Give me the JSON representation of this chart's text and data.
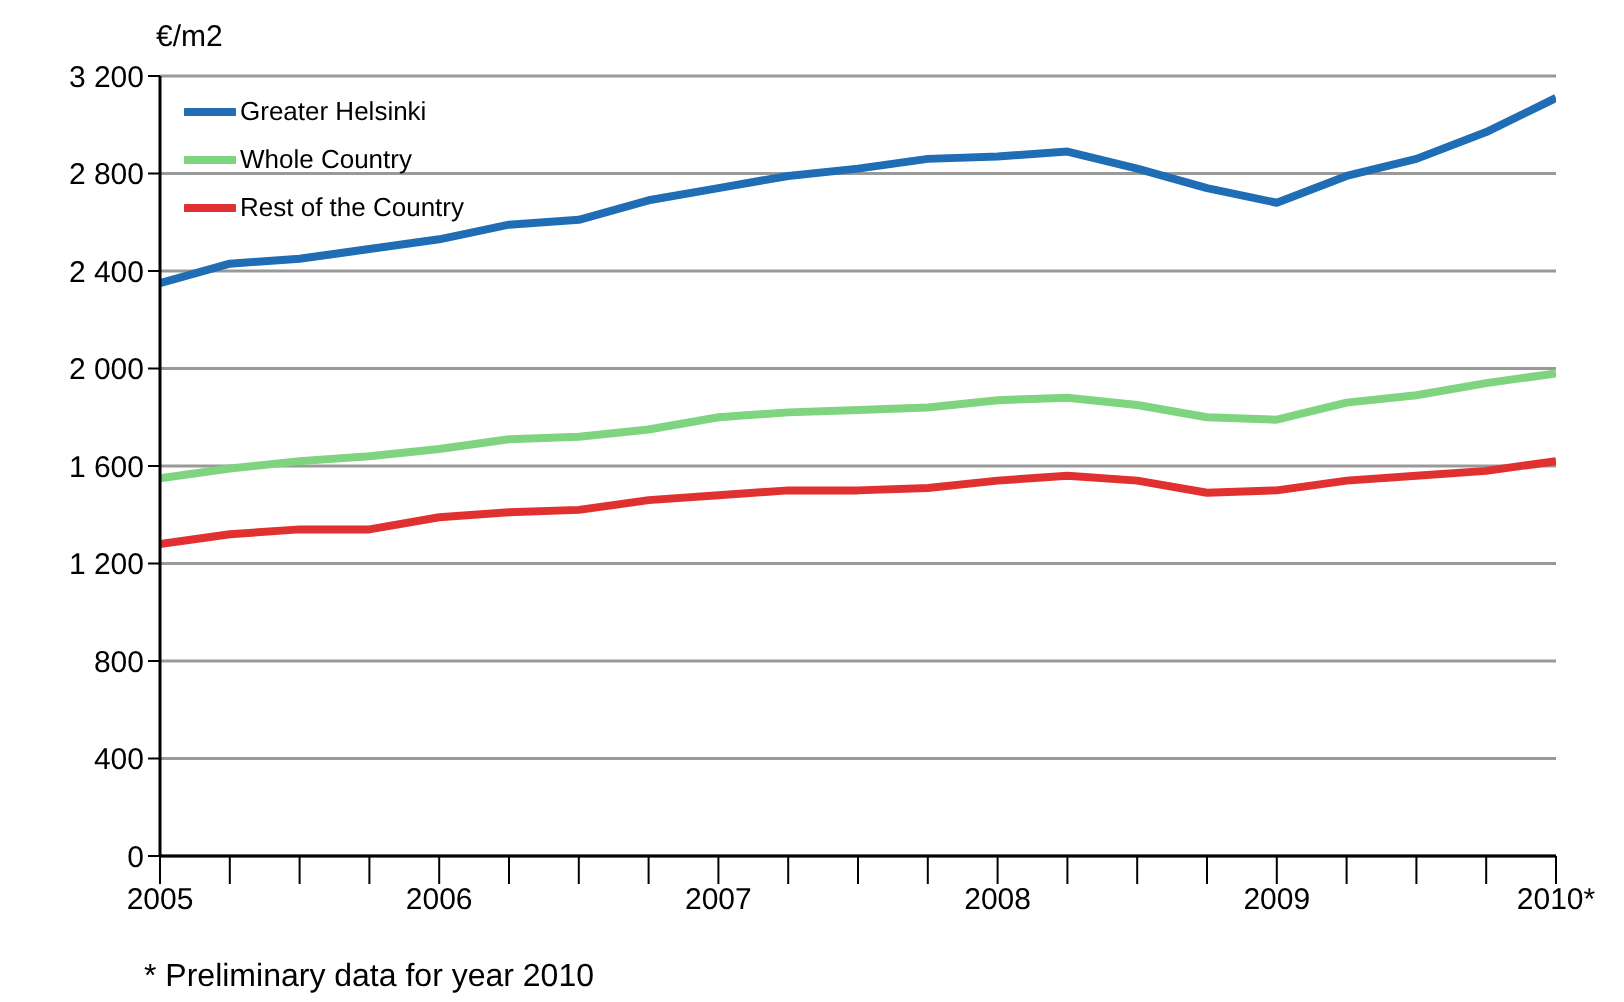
{
  "chart_data": {
    "type": "line",
    "ylabel": "€/m2",
    "annotations": [
      "* Preliminary data for year 2010"
    ],
    "x": [
      2005,
      2005.25,
      2005.5,
      2005.75,
      2006,
      2006.25,
      2006.5,
      2006.75,
      2007,
      2007.25,
      2007.5,
      2007.75,
      2008,
      2008.25,
      2008.5,
      2008.75,
      2009,
      2009.25,
      2009.5,
      2009.75,
      2010
    ],
    "series": [
      {
        "name": "Greater Helsinki",
        "color": "#1f6db5",
        "values": [
          2350,
          2430,
          2450,
          2490,
          2530,
          2590,
          2610,
          2690,
          2740,
          2790,
          2820,
          2860,
          2870,
          2890,
          2820,
          2740,
          2680,
          2790,
          2860,
          2970,
          3110
        ]
      },
      {
        "name": "Whole Country",
        "color": "#7fd47f",
        "values": [
          1550,
          1590,
          1620,
          1640,
          1670,
          1710,
          1720,
          1750,
          1800,
          1820,
          1830,
          1840,
          1870,
          1880,
          1850,
          1800,
          1790,
          1860,
          1890,
          1940,
          1980
        ]
      },
      {
        "name": "Rest of the Country",
        "color": "#e03030",
        "values": [
          1280,
          1320,
          1340,
          1340,
          1390,
          1410,
          1420,
          1460,
          1480,
          1500,
          1500,
          1510,
          1540,
          1560,
          1540,
          1490,
          1500,
          1540,
          1560,
          1580,
          1620
        ]
      }
    ],
    "xlim": [
      2005,
      2010
    ],
    "xticks": [
      2005,
      {
        "value": 2005.25,
        "label": null
      },
      {
        "value": 2005.5,
        "label": null
      },
      {
        "value": 2005.75,
        "label": null
      },
      2006,
      {
        "value": 2006.25,
        "label": null
      },
      {
        "value": 2006.5,
        "label": null
      },
      {
        "value": 2006.75,
        "label": null
      },
      2007,
      {
        "value": 2007.25,
        "label": null
      },
      {
        "value": 2007.5,
        "label": null
      },
      {
        "value": 2007.75,
        "label": null
      },
      2008,
      {
        "value": 2008.25,
        "label": null
      },
      {
        "value": 2008.5,
        "label": null
      },
      {
        "value": 2008.75,
        "label": null
      },
      2009,
      {
        "value": 2009.25,
        "label": null
      },
      {
        "value": 2009.5,
        "label": null
      },
      {
        "value": 2009.75,
        "label": null
      },
      {
        "value": 2010,
        "label": "2010*"
      }
    ],
    "ylim": [
      0,
      3200
    ],
    "yticks": [
      0,
      400,
      800,
      {
        "value": 1200,
        "label": "1 200"
      },
      {
        "value": 1600,
        "label": "1 600"
      },
      {
        "value": 2000,
        "label": "2 000"
      },
      {
        "value": 2400,
        "label": "2 400"
      },
      {
        "value": 2800,
        "label": "2 800"
      },
      {
        "value": 3200,
        "label": "3 200"
      }
    ],
    "grid": "y",
    "legend": "top left",
    "marker": "none",
    "line_style": "solid"
  }
}
